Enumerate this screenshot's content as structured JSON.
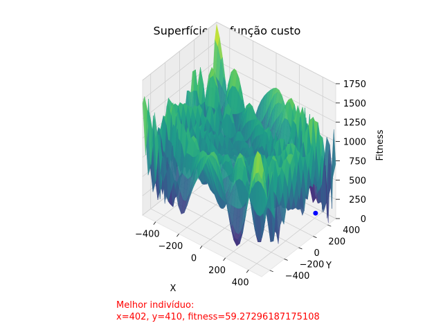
{
  "chart_data": {
    "type": "surface3d",
    "title": "Superfície da função custo",
    "xlabel": "X",
    "ylabel": "Y",
    "zlabel": "Fitness",
    "x_ticks": [
      "−400",
      "−200",
      "0",
      "200",
      "400"
    ],
    "y_ticks": [
      "−400",
      "−200",
      "0",
      "200",
      "400"
    ],
    "z_ticks": [
      "0",
      "250",
      "500",
      "750",
      "1000",
      "1250",
      "1500",
      "1750"
    ],
    "xlim": [
      -512,
      512
    ],
    "ylim": [
      -512,
      512
    ],
    "zlim": [
      0,
      1750
    ],
    "function": "eggholder",
    "colormap": "viridis",
    "grid": true,
    "best_point": {
      "x": 402,
      "y": 410,
      "z": 59.27296187175108,
      "color": "#0000ff"
    }
  },
  "annotation": {
    "line1": "Melhor indivíduo:",
    "line2": "x=402, y=410, fitness=59.27296187175108",
    "color": "#ff0000"
  }
}
